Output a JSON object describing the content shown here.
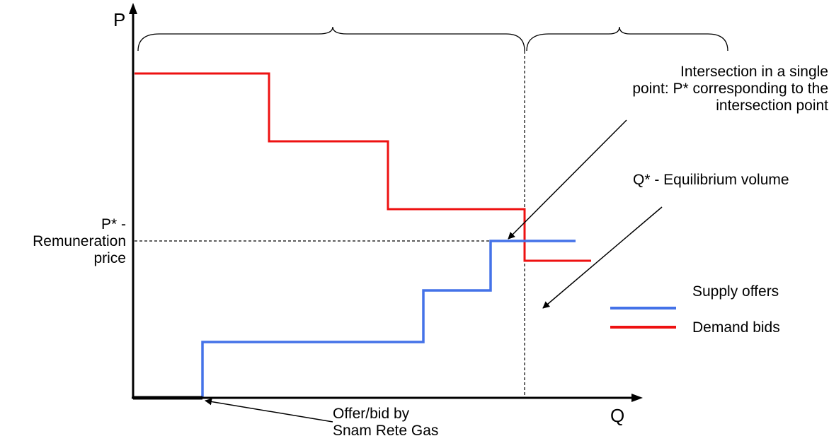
{
  "axis": {
    "y_label": "P",
    "x_label": "Q"
  },
  "labels": {
    "p_star": "P* -\nRemuneration\nprice",
    "intersection": "Intersection in a single\npoint: P* corresponding to the\nintersection point",
    "q_star": "Q* - Equilibrium volume",
    "snam": "Offer/bid by\nSnam Rete Gas"
  },
  "legend": {
    "supply": "Supply offers",
    "demand": "Demand bids"
  },
  "colors": {
    "supply": "#4472e8",
    "demand": "#ee1111",
    "axis": "#000000"
  }
}
